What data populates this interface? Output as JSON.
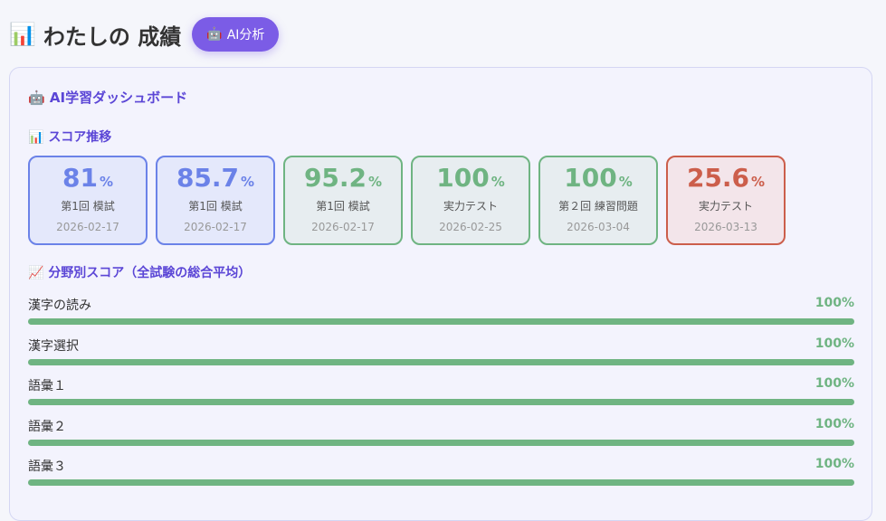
{
  "header": {
    "icon": "bar-chart-icon",
    "icon_glyph": "📊",
    "title": "わたしの 成績",
    "ai_button": {
      "icon": "robot-icon",
      "icon_glyph": "🤖",
      "label": "AI分析"
    }
  },
  "dashboard": {
    "icon_glyph": "🤖",
    "title": "AI学習ダッシュボード"
  },
  "score_trend": {
    "icon_glyph": "📊",
    "title": "スコア推移",
    "cards": [
      {
        "score": "81",
        "unit": "%",
        "name": "第1回 模試",
        "date": "2026-02-17",
        "status": "blue"
      },
      {
        "score": "85.7",
        "unit": "%",
        "name": "第1回 模試",
        "date": "2026-02-17",
        "status": "blue"
      },
      {
        "score": "95.2",
        "unit": "%",
        "name": "第1回 模試",
        "date": "2026-02-17",
        "status": "green"
      },
      {
        "score": "100",
        "unit": "%",
        "name": "実力テスト",
        "date": "2026-02-25",
        "status": "green"
      },
      {
        "score": "100",
        "unit": "%",
        "name": "第２回 練習問題",
        "date": "2026-03-04",
        "status": "green"
      },
      {
        "score": "25.6",
        "unit": "%",
        "name": "実力テスト",
        "date": "2026-03-13",
        "status": "red"
      }
    ]
  },
  "subject_scores": {
    "icon_glyph": "📈",
    "title": "分野別スコア（全試験の総合平均）",
    "items": [
      {
        "label": "漢字の読み",
        "value": "100%",
        "percent": 100
      },
      {
        "label": "漢字選択",
        "value": "100%",
        "percent": 100
      },
      {
        "label": "語彙１",
        "value": "100%",
        "percent": 100
      },
      {
        "label": "語彙２",
        "value": "100%",
        "percent": 100
      },
      {
        "label": "語彙３",
        "value": "100%",
        "percent": 100
      }
    ]
  },
  "colors": {
    "accent": "#7b5ce6",
    "blue": "#6b82e8",
    "green": "#6fb482",
    "red": "#cc5e4b"
  }
}
